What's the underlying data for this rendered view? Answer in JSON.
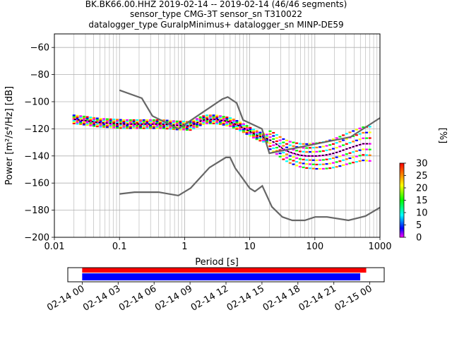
{
  "title_lines": [
    "BK.BK66.00.HHZ   2019-02-14 -- 2019-02-14  (46/46 segments)",
    "sensor_type CMG-3T sensor_sn T310022",
    "datalogger_type GuralpMinimus+ datalogger_sn MINP-DE59"
  ],
  "colorbar": {
    "label": "[%]",
    "ticks": [
      "0",
      "5",
      "10",
      "15",
      "20",
      "25",
      "30"
    ],
    "range": [
      0,
      30
    ],
    "colors": [
      "#ff00ff",
      "#0000ff",
      "#00ffff",
      "#00ff00",
      "#ffff00",
      "#ff8000",
      "#ff0000"
    ]
  },
  "timeline": {
    "ticks": [
      "02-14 00",
      "02-14 03",
      "02-14 06",
      "02-14 09",
      "02-14 12",
      "02-14 15",
      "02-14 18",
      "02-14 21",
      "02-15 00"
    ],
    "range_hours": [
      -1.2,
      25.2
    ],
    "red_bar_hours": [
      0,
      23.7
    ],
    "blue_bar_hours": [
      0,
      23.2
    ],
    "red_color": "#ff0000",
    "blue_color": "#0000ff"
  },
  "chart_data": {
    "type": "line",
    "xlabel": "Period [s]",
    "ylabel": "Power [m²/s⁴/Hz] [dB]",
    "xscale": "log",
    "xlim": [
      0.01,
      1000
    ],
    "ylim": [
      -200,
      -50
    ],
    "xticks": [
      0.01,
      0.1,
      1,
      10,
      100,
      1000
    ],
    "xtick_labels": [
      "0.01",
      "0.1",
      "1",
      "10",
      "100",
      "1000"
    ],
    "yticks": [
      -200,
      -180,
      -160,
      -140,
      -120,
      -100,
      -80,
      -60
    ],
    "ytick_labels": [
      "−200",
      "−180",
      "−160",
      "−140",
      "−120",
      "−100",
      "−80",
      "−60"
    ],
    "grid": true,
    "nhnm": {
      "x": [
        0.1,
        0.22,
        0.32,
        0.8,
        3.8,
        4.6,
        6.3,
        7.9,
        15.4,
        20,
        354.8,
        1000
      ],
      "y": [
        -91.5,
        -97.4,
        -110.5,
        -120,
        -98,
        -96.5,
        -101,
        -113.5,
        -120,
        -138,
        -126,
        -112
      ]
    },
    "nlnm": {
      "x": [
        0.1,
        0.17,
        0.4,
        0.8,
        1.24,
        2.4,
        4.3,
        5,
        6,
        10,
        12,
        15.6,
        21.9,
        31.6,
        45,
        70,
        101,
        154,
        328,
        600,
        1000
      ],
      "y": [
        -168,
        -166.7,
        -166.7,
        -169.2,
        -163.7,
        -148.6,
        -141.1,
        -141.1,
        -149,
        -163.8,
        -166.2,
        -162.1,
        -177.5,
        -185,
        -187.5,
        -187.5,
        -185,
        -185,
        -187.5,
        -184.4,
        -178
      ]
    },
    "psd": {
      "x": [
        0.02,
        0.03,
        0.05,
        0.08,
        0.12,
        0.2,
        0.3,
        0.45,
        0.6,
        0.8,
        1.0,
        1.2,
        1.5,
        1.8,
        2.2,
        3.0,
        4.0,
        5.0,
        6.0,
        7.0,
        8.5,
        10,
        12,
        15,
        18,
        22,
        27,
        33,
        40,
        50,
        60,
        75,
        90,
        110,
        140,
        180,
        230,
        300,
        400,
        550,
        700
      ],
      "y": [
        -113,
        -114,
        -115.5,
        -116,
        -116.5,
        -116.5,
        -116.5,
        -116.5,
        -117,
        -117.5,
        -117.5,
        -118,
        -116,
        -114,
        -113,
        -113,
        -114,
        -115,
        -116.5,
        -118,
        -120,
        -122,
        -124,
        -126,
        -127,
        -129,
        -132,
        -135,
        -137,
        -138.5,
        -139.5,
        -140,
        -140,
        -140,
        -139.5,
        -138.5,
        -137,
        -135,
        -133,
        -131,
        -131
      ]
    }
  }
}
